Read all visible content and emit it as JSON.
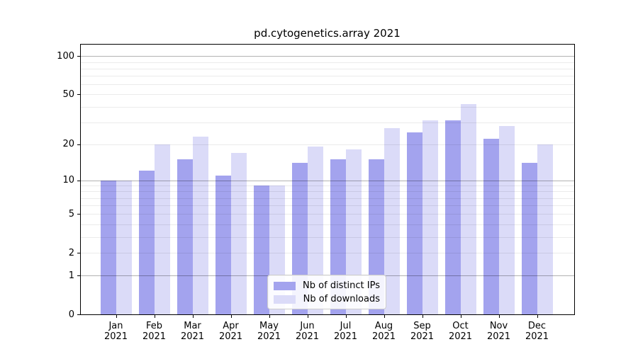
{
  "chart_data": {
    "type": "bar",
    "title": "pd.cytogenetics.array 2021",
    "months": [
      "Jan",
      "Feb",
      "Mar",
      "Apr",
      "May",
      "Jun",
      "Jul",
      "Aug",
      "Sep",
      "Oct",
      "Nov",
      "Dec"
    ],
    "year": "2021",
    "categories": [
      "Jan 2021",
      "Feb 2021",
      "Mar 2021",
      "Apr 2021",
      "May 2021",
      "Jun 2021",
      "Jul 2021",
      "Aug 2021",
      "Sep 2021",
      "Oct 2021",
      "Nov 2021",
      "Dec 2021"
    ],
    "series": [
      {
        "name": "Nb of distinct IPs",
        "color": "#a3a3ee",
        "values": [
          10,
          12,
          15,
          11,
          9,
          14,
          15,
          15,
          25,
          31,
          22,
          14
        ]
      },
      {
        "name": "Nb of downloads",
        "color": "#dbdbf8",
        "values": [
          10,
          20,
          23,
          17,
          9,
          19,
          18,
          27,
          31,
          42,
          28,
          20
        ]
      }
    ],
    "ylabel": "",
    "xlabel": "",
    "yticks": [
      0,
      1,
      2,
      5,
      10,
      20,
      50,
      100
    ],
    "y_scale": "log10(value+1)",
    "ylim": [
      0,
      125
    ],
    "grid": {
      "major_values": [
        1,
        10,
        100
      ],
      "minor_values": [
        2,
        3,
        4,
        5,
        6,
        7,
        8,
        9,
        20,
        30,
        40,
        50,
        60,
        70,
        80,
        90
      ]
    },
    "legend_position": "bottom-center"
  }
}
